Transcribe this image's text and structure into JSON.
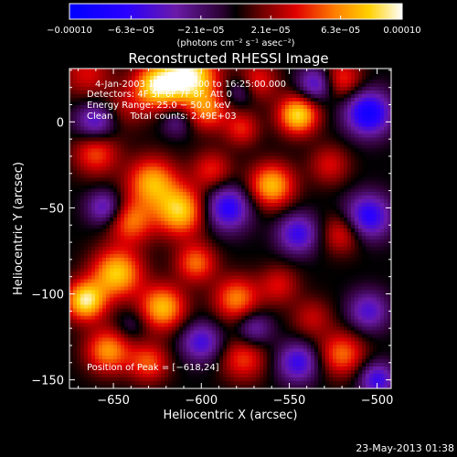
{
  "chart_data": {
    "type": "heatmap",
    "title": "Reconstructed RHESSI Image",
    "xlabel": "Heliocentric X (arcsec)",
    "ylabel": "Heliocentric Y (arcsec)",
    "xlim": [
      -675,
      -492
    ],
    "ylim": [
      -155,
      31
    ],
    "x_ticks": [
      -650,
      -600,
      -550,
      -500
    ],
    "x_tick_labels": [
      "−650",
      "−600",
      "−550",
      "−500"
    ],
    "y_ticks": [
      0,
      -50,
      -100,
      -150
    ],
    "y_tick_labels": [
      "0",
      "−50",
      "−100",
      "−150"
    ],
    "colorbar": {
      "min": -0.0001,
      "max": 0.0001,
      "tick_values": [
        -0.0001,
        -6.3e-05,
        -2.1e-05,
        2.1e-05,
        6.3e-05,
        0.0001
      ],
      "tick_labels": [
        "−0.00010",
        "−6.3e−05",
        "−2.1e−05",
        "2.1e−05",
        "6.3e−05",
        "0.00010"
      ],
      "units_label": "(photons cm⁻² s⁻¹ asec⁻²)"
    },
    "annotations": [
      "4-Jan-2003 16:20:54.000 to 16:25:00.000",
      "Detectors: 4F 5F 6F 7F 8F, Att 0",
      "Energy Range: 25.0 − 50.0 keV",
      "Clean      Total counts: 2.49E+03"
    ],
    "peak_label": "Position of Peak = [−618,24]",
    "peak": [
      -618,
      24
    ],
    "grid": false,
    "colormap": "rainbow-black-blue-purple-red-orange-yellow-white",
    "blobs": [
      {
        "x": -607,
        "y": 26,
        "amp": 1.0,
        "s": 11
      },
      {
        "x": -626,
        "y": 21,
        "amp": 0.8,
        "s": 9
      },
      {
        "x": -665,
        "y": 28,
        "amp": 0.35,
        "s": 10
      },
      {
        "x": -644,
        "y": 8,
        "amp": 0.25,
        "s": 9
      },
      {
        "x": -596,
        "y": 6,
        "amp": 0.5,
        "s": 8
      },
      {
        "x": -577,
        "y": -4,
        "amp": 0.4,
        "s": 7
      },
      {
        "x": -545,
        "y": 4,
        "amp": 0.85,
        "s": 8
      },
      {
        "x": -568,
        "y": 24,
        "amp": 0.4,
        "s": 8
      },
      {
        "x": -520,
        "y": 25,
        "amp": 0.45,
        "s": 8
      },
      {
        "x": -660,
        "y": -18,
        "amp": 0.5,
        "s": 9
      },
      {
        "x": -628,
        "y": -35,
        "amp": 0.7,
        "s": 10
      },
      {
        "x": -612,
        "y": -52,
        "amp": 0.8,
        "s": 10
      },
      {
        "x": -640,
        "y": -58,
        "amp": 0.55,
        "s": 9
      },
      {
        "x": -594,
        "y": -28,
        "amp": 0.4,
        "s": 8
      },
      {
        "x": -560,
        "y": -37,
        "amp": 0.75,
        "s": 9
      },
      {
        "x": -527,
        "y": -25,
        "amp": 0.35,
        "s": 8
      },
      {
        "x": -520,
        "y": -65,
        "amp": 0.4,
        "s": 8
      },
      {
        "x": -648,
        "y": -88,
        "amp": 0.8,
        "s": 10
      },
      {
        "x": -666,
        "y": -104,
        "amp": 0.9,
        "s": 8
      },
      {
        "x": -622,
        "y": -108,
        "amp": 0.75,
        "s": 9
      },
      {
        "x": -603,
        "y": -82,
        "amp": 0.55,
        "s": 8
      },
      {
        "x": -580,
        "y": -103,
        "amp": 0.6,
        "s": 9
      },
      {
        "x": -556,
        "y": -95,
        "amp": 0.35,
        "s": 8
      },
      {
        "x": -537,
        "y": -114,
        "amp": 0.3,
        "s": 8
      },
      {
        "x": -520,
        "y": -135,
        "amp": 0.55,
        "s": 9
      },
      {
        "x": -653,
        "y": -133,
        "amp": 0.65,
        "s": 9
      },
      {
        "x": -630,
        "y": -140,
        "amp": 0.5,
        "s": 8
      },
      {
        "x": -576,
        "y": -138,
        "amp": 0.45,
        "s": 9
      },
      {
        "x": -660,
        "y": 0,
        "amp": -0.55,
        "s": 8
      },
      {
        "x": -614,
        "y": 0,
        "amp": -0.3,
        "s": 6
      },
      {
        "x": -578,
        "y": 18,
        "amp": -0.3,
        "s": 6
      },
      {
        "x": -535,
        "y": 22,
        "amp": -0.55,
        "s": 7
      },
      {
        "x": -505,
        "y": 5,
        "amp": -0.85,
        "s": 9
      },
      {
        "x": -585,
        "y": -50,
        "amp": -0.7,
        "s": 9
      },
      {
        "x": -545,
        "y": -65,
        "amp": -0.6,
        "s": 8
      },
      {
        "x": -505,
        "y": -55,
        "amp": -0.7,
        "s": 9
      },
      {
        "x": -655,
        "y": -50,
        "amp": -0.5,
        "s": 7
      },
      {
        "x": -600,
        "y": -128,
        "amp": -0.55,
        "s": 8
      },
      {
        "x": -570,
        "y": -120,
        "amp": -0.4,
        "s": 7
      },
      {
        "x": -545,
        "y": -140,
        "amp": -0.6,
        "s": 8
      },
      {
        "x": -505,
        "y": -110,
        "amp": -0.5,
        "s": 8
      },
      {
        "x": -640,
        "y": -118,
        "amp": -0.2,
        "s": 6
      },
      {
        "x": -500,
        "y": -150,
        "amp": -0.6,
        "s": 7
      }
    ]
  },
  "footer_timestamp": "23-May-2013 01:38"
}
